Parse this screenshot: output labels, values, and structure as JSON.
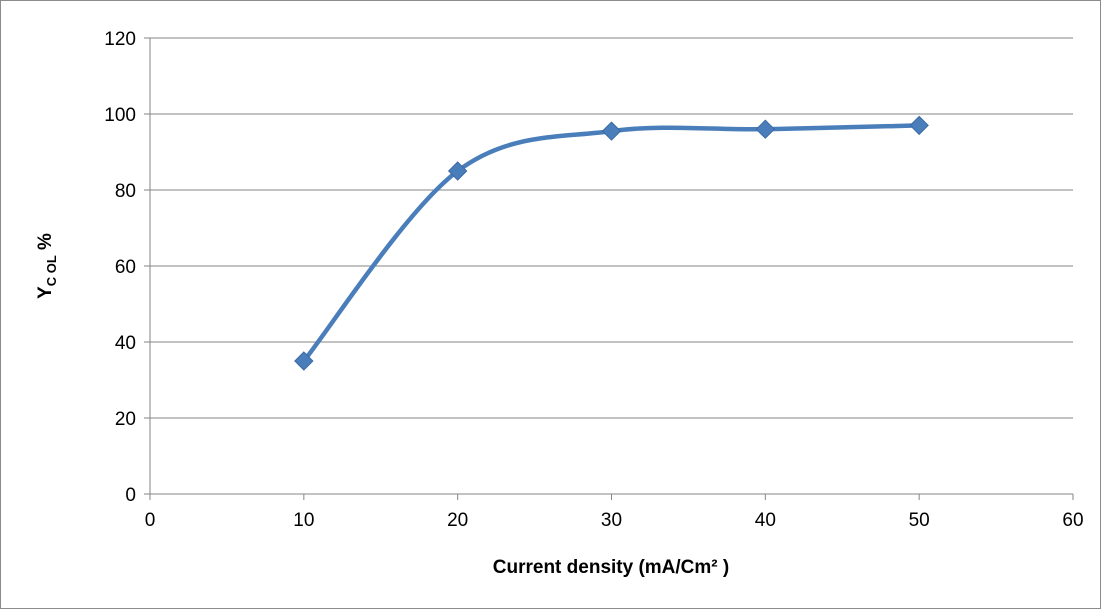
{
  "chart_data": {
    "type": "line",
    "smooth": true,
    "x": [
      10,
      20,
      30,
      40,
      50
    ],
    "series": [
      {
        "values": [
          35,
          85,
          95.5,
          96,
          97
        ],
        "color": "#4a7ebb",
        "marker": "diamond"
      }
    ],
    "xlabel": "Current density (mA/Cm² )",
    "ylabel": {
      "main": "Y",
      "subscript": "C OL",
      "suffix": " %"
    },
    "xlim": [
      0,
      60
    ],
    "ylim": [
      0,
      120
    ],
    "xticks": [
      0,
      10,
      20,
      30,
      40,
      50,
      60
    ],
    "yticks": [
      0,
      20,
      40,
      60,
      80,
      100,
      120
    ],
    "grid": {
      "horizontal": true,
      "vertical": false,
      "color": "#868686"
    },
    "legend": "none"
  }
}
